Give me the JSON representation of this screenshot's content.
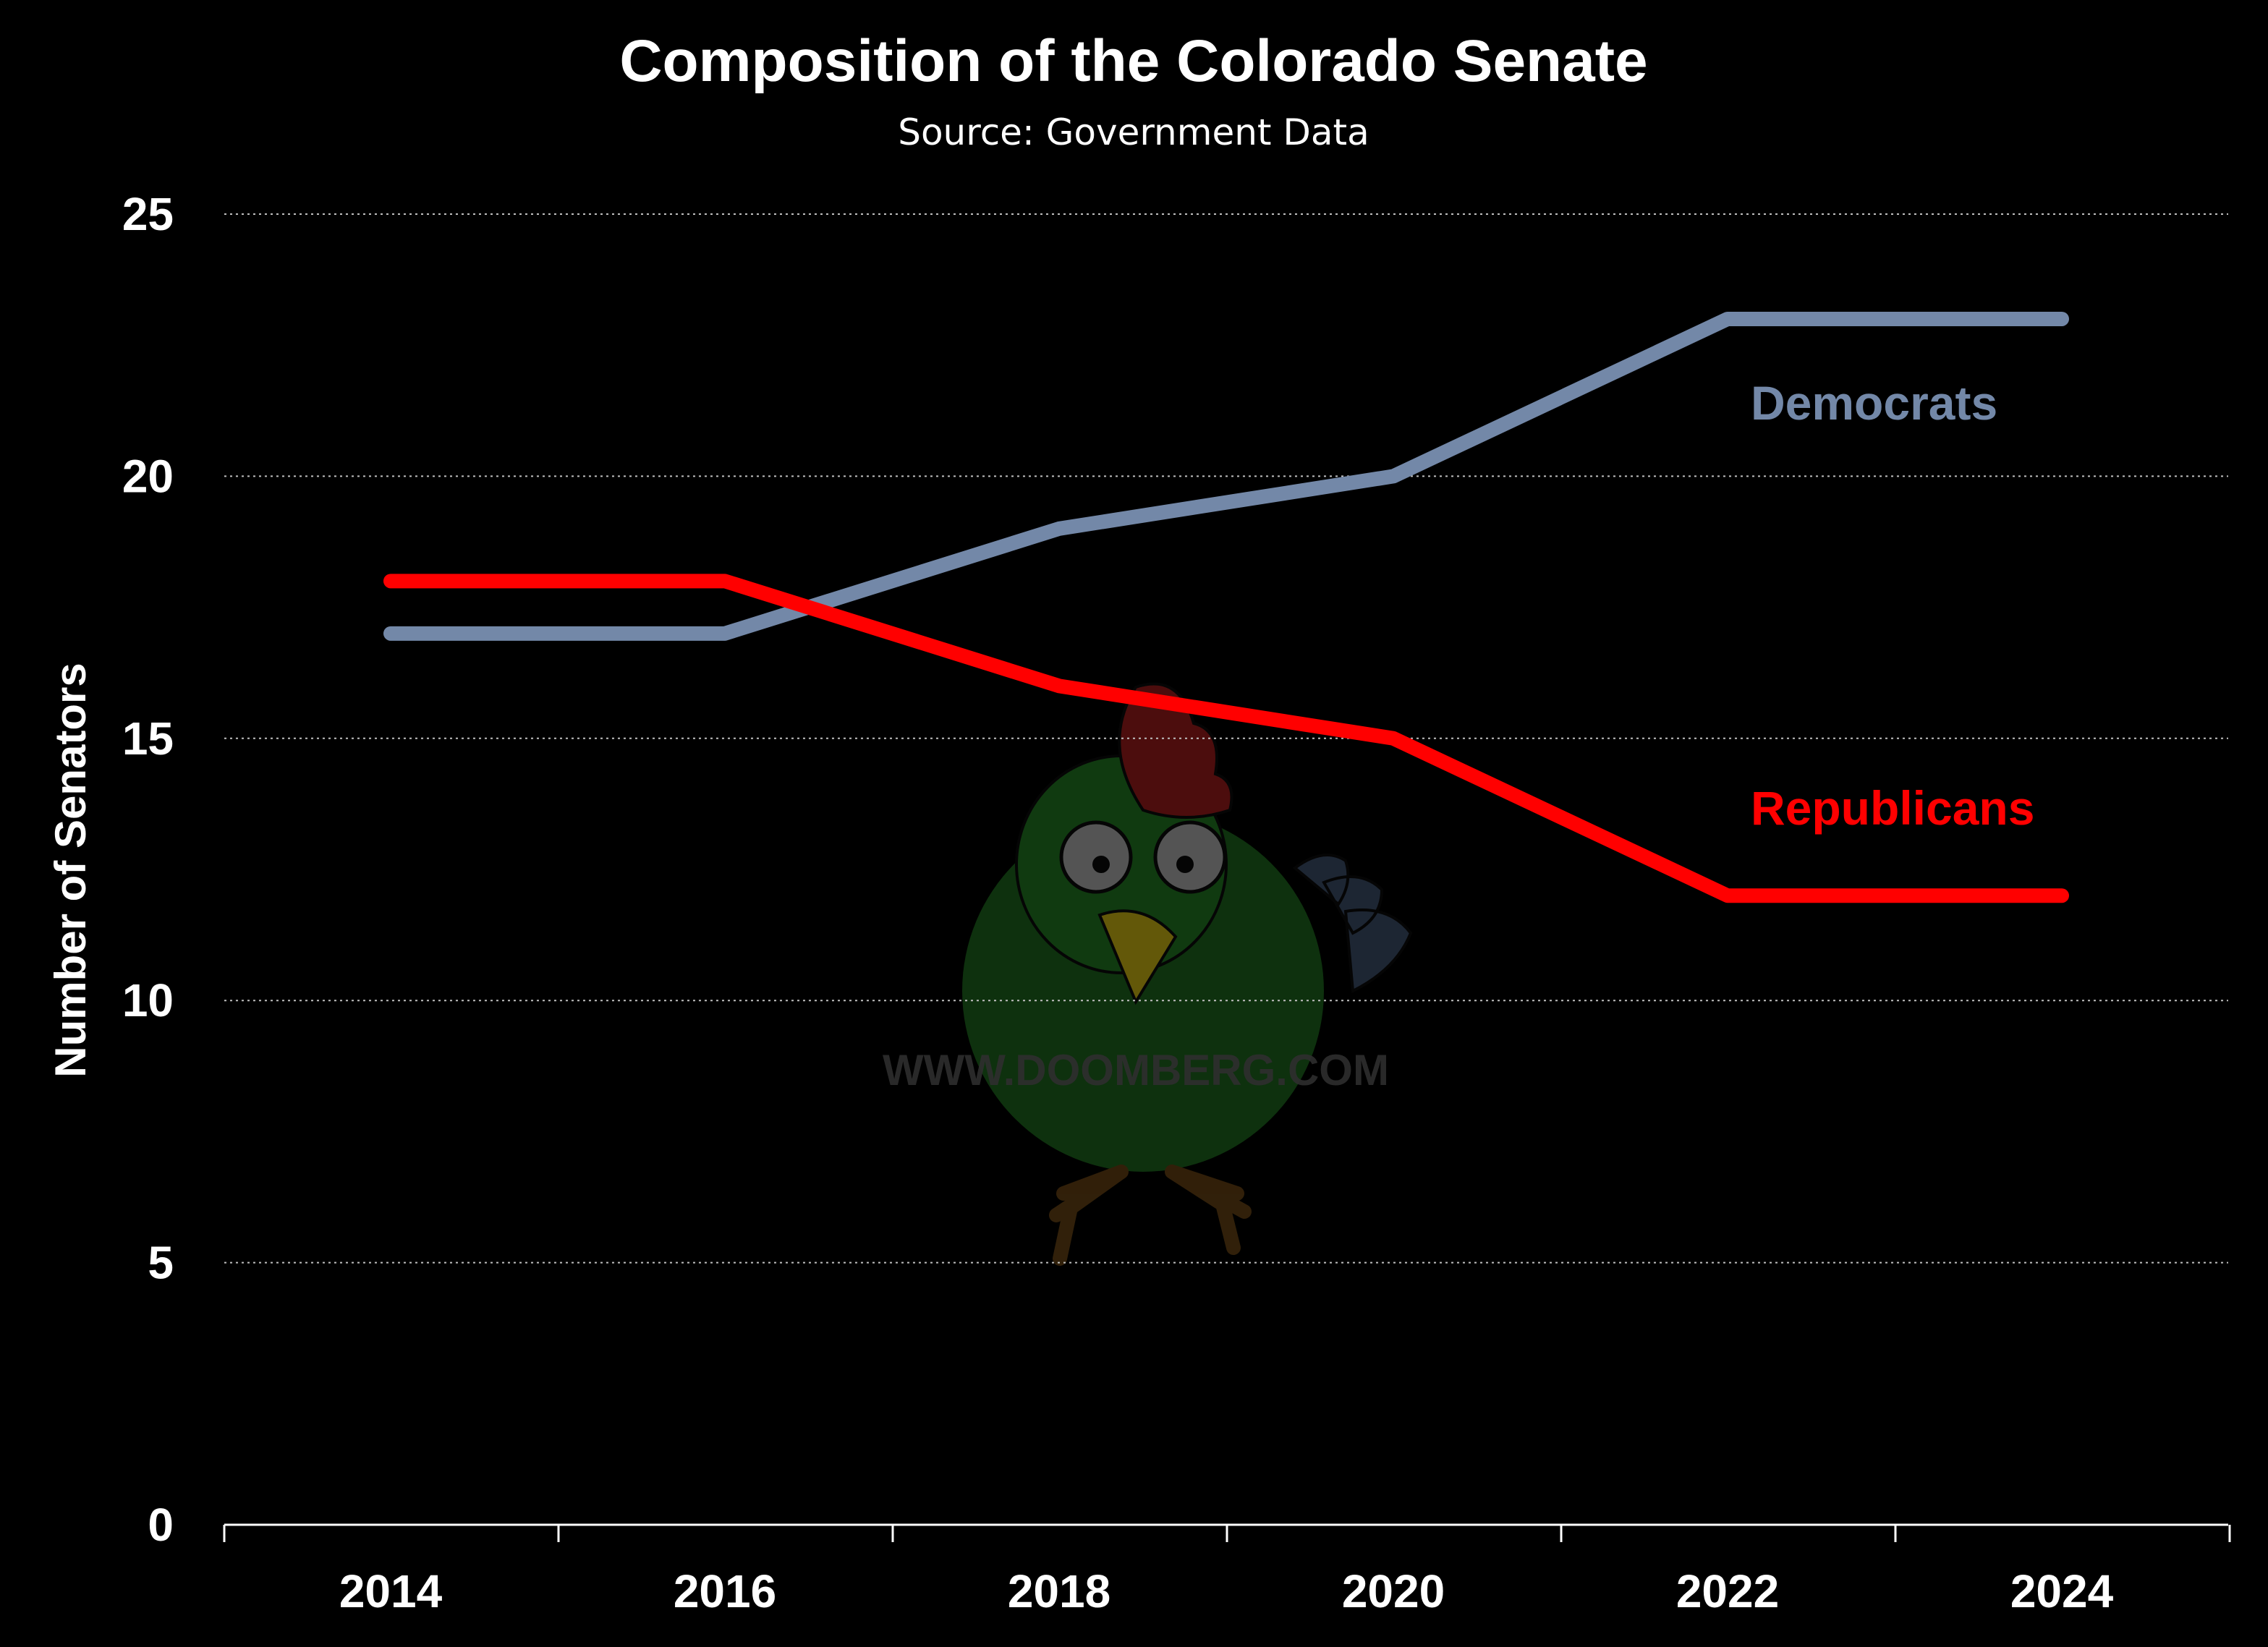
{
  "colors": {
    "background": "#000000",
    "democrats": "#7388a8",
    "republicans": "#ff0000",
    "text": "#ffffff",
    "grid": "#bfbfbf"
  },
  "watermark": {
    "text": "WWW.DOOMBERG.COM",
    "icon": "chicken-mascot-icon"
  },
  "chart_data": {
    "type": "line",
    "title": "Composition of the Colorado Senate",
    "subtitle": "Source: Government Data",
    "xlabel": "",
    "ylabel": "Number of Senators",
    "x": [
      2014,
      2016,
      2018,
      2020,
      2022,
      2024
    ],
    "x_tick_labels": [
      "2014",
      "2016",
      "2018",
      "2020",
      "2022",
      "2024"
    ],
    "y_tick_labels": [
      "0",
      "5",
      "10",
      "15",
      "20",
      "25"
    ],
    "ylim": [
      0,
      25
    ],
    "grid": "horizontal dotted",
    "legend": "inline labels at right",
    "series": [
      {
        "name": "Democrats",
        "values": [
          17,
          17,
          19,
          20,
          23,
          23
        ],
        "color": "#7388a8"
      },
      {
        "name": "Republicans",
        "values": [
          18,
          18,
          16,
          15,
          12,
          12
        ],
        "color": "#ff0000"
      }
    ]
  }
}
